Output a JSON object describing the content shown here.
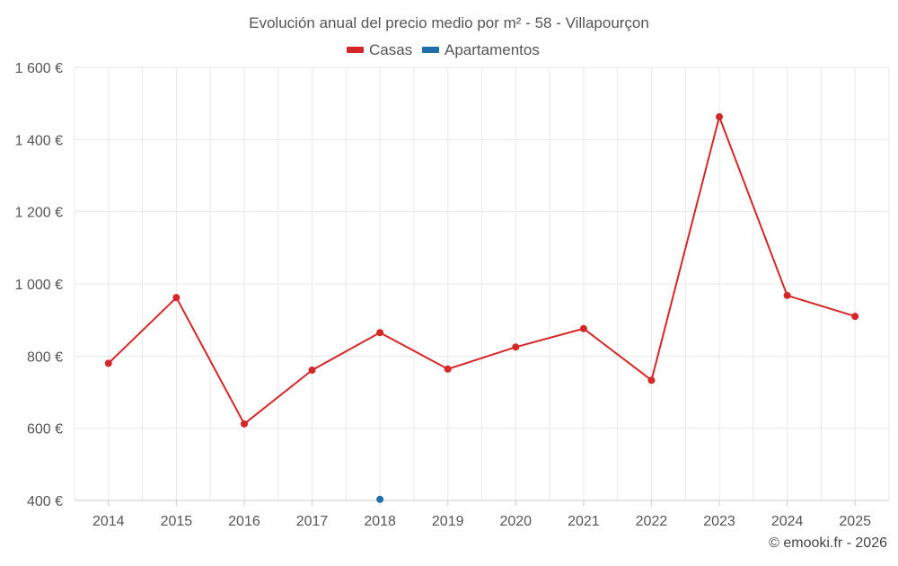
{
  "chart_data": {
    "type": "line",
    "title": "Evolución anual del precio medio por m² - 58 - Villapourçon",
    "categories": [
      "2014",
      "2015",
      "2016",
      "2017",
      "2018",
      "2019",
      "2020",
      "2021",
      "2022",
      "2023",
      "2024",
      "2025"
    ],
    "series": [
      {
        "name": "Casas",
        "color": "#d62728",
        "values": [
          780,
          962,
          612,
          761,
          865,
          764,
          825,
          876,
          733,
          1463,
          968,
          910
        ]
      },
      {
        "name": "Apartamentos",
        "color": "#1f6fa8",
        "values": [
          null,
          null,
          null,
          null,
          403,
          null,
          null,
          null,
          null,
          null,
          null,
          null
        ]
      }
    ],
    "ylim": [
      400,
      1600
    ],
    "yticks": [
      400,
      600,
      800,
      1000,
      1200,
      1400,
      1600
    ],
    "ytick_labels": [
      "400 €",
      "600 €",
      "800 €",
      "1 000 €",
      "1 200 €",
      "1 400 €",
      "1 600 €"
    ],
    "grid": true,
    "legend_position": "top-center"
  },
  "credit": "© emooki.fr - 2026"
}
